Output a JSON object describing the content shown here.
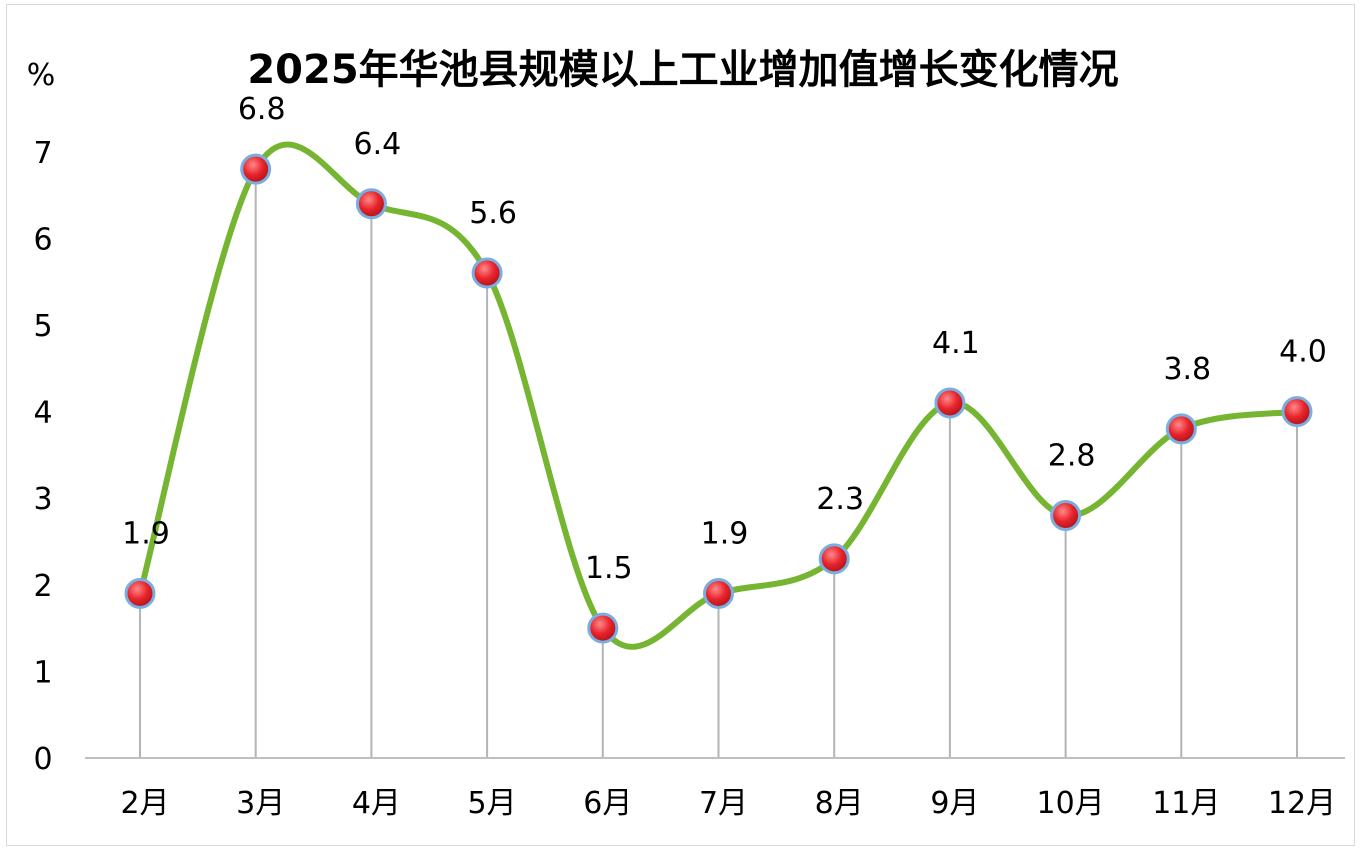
{
  "chart_data": {
    "type": "line",
    "title": "2025年华池县规模以上工业增加值增长变化情况",
    "ylabel": "%",
    "xlabel": "",
    "categories": [
      "2月",
      "3月",
      "4月",
      "5月",
      "6月",
      "7月",
      "8月",
      "9月",
      "10月",
      "11月",
      "12月"
    ],
    "series": [
      {
        "values": [
          1.9,
          6.8,
          6.4,
          5.6,
          1.5,
          1.9,
          2.3,
          4.1,
          2.8,
          3.8,
          4.0
        ],
        "data_labels": [
          "1.9",
          "6.8",
          "6.4",
          "5.6",
          "1.5",
          "1.9",
          "2.3",
          "4.1",
          "2.8",
          "3.8",
          "4.0"
        ]
      }
    ],
    "yticks": [
      "0",
      "1",
      "2",
      "3",
      "4",
      "5",
      "6",
      "7"
    ],
    "ylim": [
      0,
      7.5
    ],
    "smooth": true,
    "drop_lines": true,
    "grid": false,
    "legend": "none",
    "colors": {
      "line": "#76b531",
      "marker_fill": "#e8242c",
      "marker_stroke": "#7aaee0",
      "drop_line": "#b4b4b4",
      "axis": "#bfbfbf"
    }
  }
}
